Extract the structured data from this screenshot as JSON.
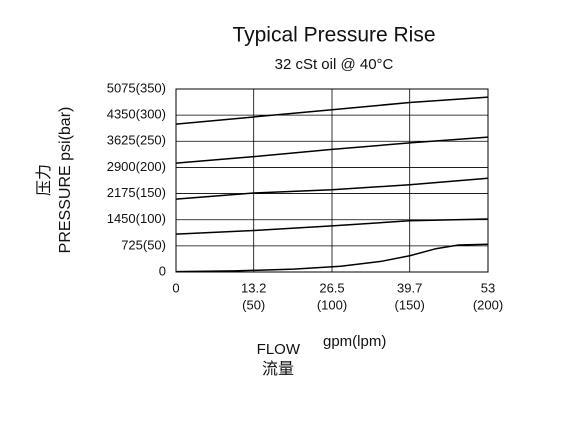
{
  "chart_data": {
    "type": "line",
    "title": "Typical Pressure Rise",
    "subtitle": "32 cSt oil @ 40°C",
    "ylabel_cn": "压力",
    "ylabel": "PRESSURE  psi(bar)",
    "xlabel": "FLOW",
    "xlabel_unit": "gpm(lpm)",
    "xlabel_cn": "流量",
    "xlim": [
      0,
      53
    ],
    "ylim": [
      0,
      5075
    ],
    "xticks": [
      0,
      {
        "value": 13.2,
        "label": "13.2",
        "sublabel": "(50)"
      },
      {
        "value": 26.5,
        "label": "26.5",
        "sublabel": "(100)"
      },
      {
        "value": 39.7,
        "label": "39.7",
        "sublabel": "(150)"
      },
      {
        "value": 53,
        "label": "53",
        "sublabel": "(200)"
      }
    ],
    "yticks": [
      0,
      {
        "value": 725,
        "label": "725(50)"
      },
      {
        "value": 1450,
        "label": "1450(100)"
      },
      {
        "value": 2175,
        "label": "2175(150)"
      },
      {
        "value": 2900,
        "label": "2900(200)"
      },
      {
        "value": 3625,
        "label": "3625(250)"
      },
      {
        "value": 4350,
        "label": "4350(300)"
      },
      {
        "value": 5075,
        "label": "5075(350)"
      }
    ],
    "grid": true,
    "series": [
      {
        "color": "#000000",
        "x": [
          0,
          13.2,
          26.5,
          39.7,
          53
        ],
        "values": [
          4100,
          4300,
          4500,
          4700,
          4850
        ]
      },
      {
        "color": "#000000",
        "x": [
          0,
          13.2,
          26.5,
          39.7,
          53
        ],
        "values": [
          3020,
          3200,
          3400,
          3580,
          3740
        ]
      },
      {
        "color": "#000000",
        "x": [
          0,
          13.2,
          26.5,
          39.7,
          53
        ],
        "values": [
          2020,
          2190,
          2280,
          2420,
          2600
        ]
      },
      {
        "color": "#000000",
        "x": [
          0,
          13.2,
          26.5,
          39.7,
          53
        ],
        "values": [
          1050,
          1150,
          1280,
          1420,
          1470
        ]
      },
      {
        "color": "#000000",
        "x": [
          0,
          10,
          20,
          28,
          35,
          39.7,
          44,
          48,
          53
        ],
        "values": [
          10,
          30,
          80,
          160,
          300,
          450,
          640,
          750,
          770
        ]
      }
    ]
  }
}
